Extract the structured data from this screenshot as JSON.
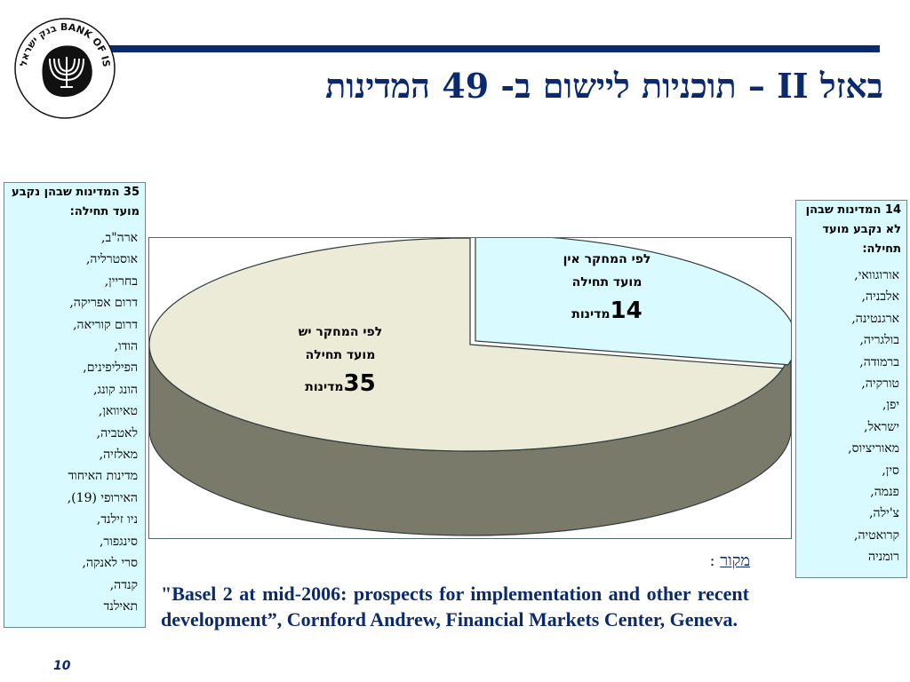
{
  "title": "באזל II – תוכניות ליישום ב- 49 המדינות",
  "logo": {
    "text": "בנק ישראל BANK OF ISRAEL",
    "icon": "menorah-icon"
  },
  "left_box": {
    "header": "35 המדינות שבהן נקבע מועד תחילה:",
    "items": [
      "ארה\"ב,",
      "אוסטרליה,",
      "בחריין,",
      "דרום אפריקה,",
      "דרום קוריאה,",
      "הודו,",
      "הפיליפינים,",
      "הונג קונג,",
      "טאיוואן,",
      "לאטביה,",
      "מאלזיה,",
      "מדינות האיחוד",
      "האירופי (19),",
      "ניו זילנד,",
      "סינגפור,",
      "סרי לאנקה,",
      "קנדה,",
      "תאילנד"
    ]
  },
  "right_box": {
    "header": "14 המדינות שבהן לא נקבע מועד תחילה:",
    "items": [
      "אורוגוואי,",
      "אלבניה,",
      "ארגנטינה,",
      "בולגריה,",
      "ברמודה,",
      "טורקיה,",
      "יפן,",
      "ישראל,",
      "מאוריציוס,",
      "סין,",
      "פנמה,",
      "צ'ילה,",
      "קרואטיה,",
      "רומניה"
    ]
  },
  "chart_data": {
    "type": "pie",
    "title": "",
    "slices": [
      {
        "label_lines": [
          "לפי המחקר יש",
          "מועד תחילה"
        ],
        "value": 35,
        "unit": "מדינות",
        "color": "#ecebd8"
      },
      {
        "label_lines": [
          "לפי המחקר אין",
          "מועד תחילה"
        ],
        "value": 14,
        "unit": "מדינות",
        "color": "#d9fbff"
      }
    ]
  },
  "source": {
    "label": "מקור",
    "text": "\"Basel 2 at mid-2006: prospects for implementation and other recent development”, Cornford Andrew, Financial Markets Center, Geneva."
  },
  "page_number": "10",
  "colors": {
    "accent": "#0b2a6e",
    "pie_side": "#7a7a6a"
  }
}
